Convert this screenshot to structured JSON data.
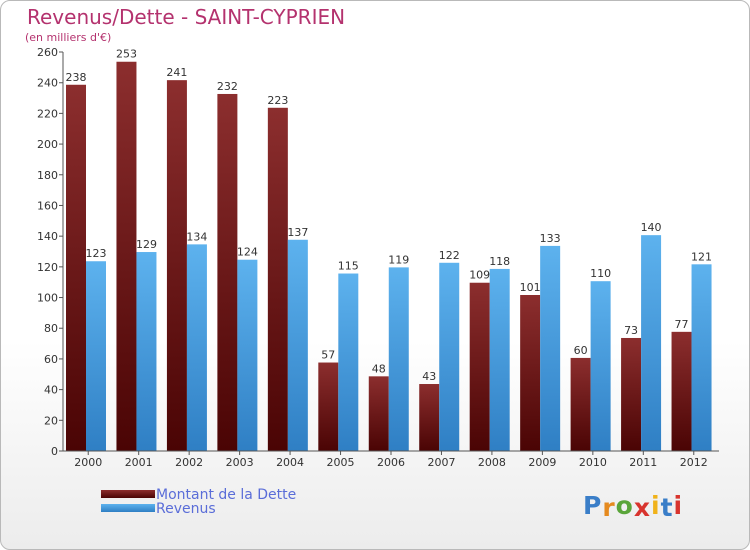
{
  "title": "Revenus/Dette - SAINT-CYPRIEN",
  "subtitle": "(en milliers d'€)",
  "colors": {
    "title": "#b4326e",
    "series_dette": "#6e1818",
    "series_revenus": "#4aa0e0",
    "legend_text": "#5a6dd8"
  },
  "legend": {
    "placement": "bottom-left",
    "items": [
      {
        "label": "Montant de la Dette",
        "color": "#6e1818"
      },
      {
        "label": "Revenus",
        "color": "#4aa0e0"
      }
    ]
  },
  "logo": {
    "text": "Proxiti",
    "icon": "proxiti-logo"
  },
  "chart_data": {
    "type": "bar",
    "title": "Revenus/Dette - SAINT-CYPRIEN",
    "subtitle": "(en milliers d'€)",
    "xlabel": "",
    "ylabel": "",
    "ylim": [
      0,
      260
    ],
    "ytick_step": 20,
    "grid": false,
    "legend_placement": "bottom-left",
    "categories": [
      "2000",
      "2001",
      "2002",
      "2003",
      "2004",
      "2005",
      "2006",
      "2007",
      "2008",
      "2009",
      "2010",
      "2011",
      "2012"
    ],
    "series": [
      {
        "name": "Montant de la Dette",
        "values": [
          238,
          253,
          241,
          232,
          223,
          57,
          48,
          43,
          109,
          101,
          60,
          73,
          77
        ]
      },
      {
        "name": "Revenus",
        "values": [
          123,
          129,
          134,
          124,
          137,
          115,
          119,
          122,
          118,
          133,
          110,
          140,
          121
        ]
      }
    ]
  }
}
